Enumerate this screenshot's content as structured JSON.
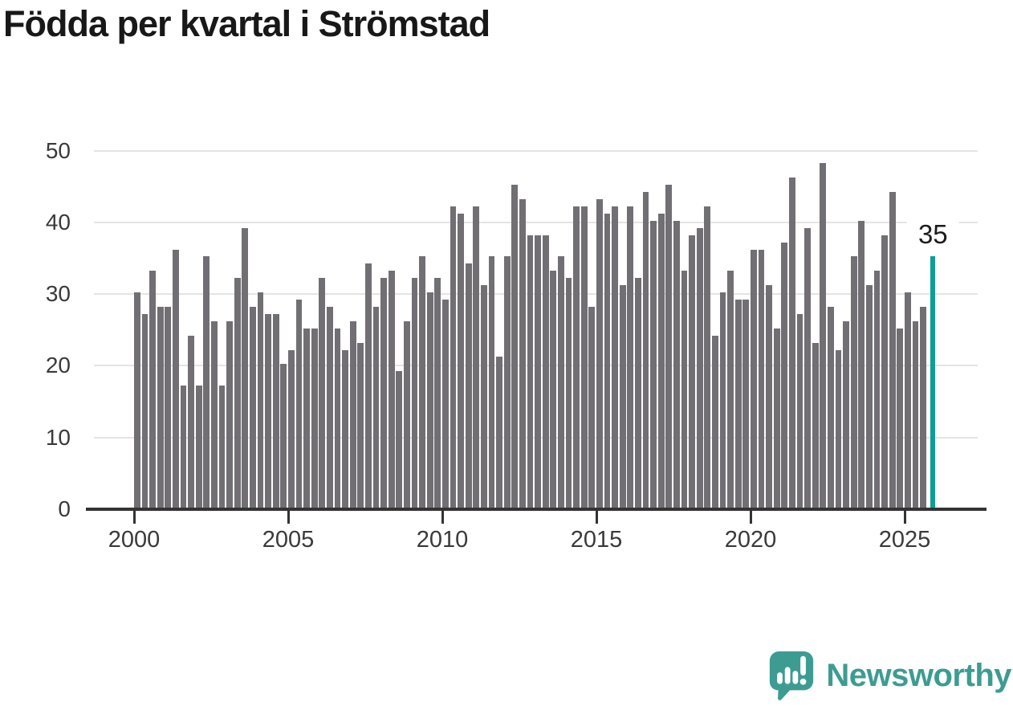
{
  "title": "Födda per kvartal i Strömstad",
  "branding": {
    "name": "Newsworthy",
    "icon": "newsworthy-speech-bubble-chart-icon"
  },
  "colors": {
    "bar": "#716F74",
    "highlight": "#0D9E97",
    "brand": "#3D9C92",
    "gridline": "#E4E4E4",
    "axis": "#333333",
    "title_text": "#181818"
  },
  "chart_data": {
    "type": "bar",
    "title": "Födda per kvartal i Strömstad",
    "x_unit": "quarter",
    "x_start": "2000 Q1",
    "x_end": "2025 Q4",
    "values": [
      30,
      27,
      33,
      28,
      28,
      36,
      17,
      24,
      17,
      35,
      26,
      17,
      26,
      32,
      39,
      28,
      30,
      27,
      27,
      20,
      22,
      29,
      25,
      25,
      32,
      28,
      25,
      22,
      26,
      23,
      34,
      28,
      32,
      33,
      19,
      26,
      32,
      35,
      30,
      32,
      29,
      42,
      41,
      34,
      42,
      31,
      35,
      21,
      35,
      45,
      43,
      38,
      38,
      38,
      33,
      35,
      32,
      42,
      42,
      28,
      43,
      41,
      42,
      31,
      42,
      32,
      44,
      40,
      41,
      45,
      40,
      33,
      38,
      39,
      42,
      24,
      30,
      33,
      29,
      29,
      36,
      36,
      31,
      25,
      37,
      46,
      27,
      39,
      23,
      48,
      28,
      22,
      26,
      35,
      40,
      31,
      33,
      38,
      44,
      25,
      30,
      26,
      28,
      35
    ],
    "highlight_index": 103,
    "highlight_value": 35,
    "highlight_label": "35",
    "yticks": [
      0,
      10,
      20,
      30,
      40,
      50
    ],
    "ylim": [
      0,
      52
    ],
    "xticks": [
      2000,
      2005,
      2010,
      2015,
      2020,
      2025
    ],
    "grid": true,
    "legend": "none",
    "ylabel": "",
    "xlabel": ""
  }
}
